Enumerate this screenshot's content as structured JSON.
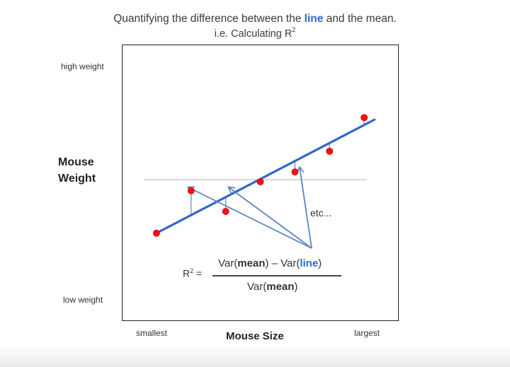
{
  "title": {
    "prefix": "Quantifying the difference between the ",
    "highlight": "line",
    "suffix": " and the mean."
  },
  "subtitle": {
    "text": "i.e. Calculating R",
    "sup": "2"
  },
  "y_axis": {
    "high_label": "high weight",
    "low_label": "low weight",
    "name_line1": "Mouse",
    "name_line2": "Weight"
  },
  "x_axis": {
    "low_label": "smallest",
    "high_label": "largest",
    "name": "Mouse Size"
  },
  "annotation": "etc...",
  "formula": {
    "lhs": "R",
    "lhs_sup": "2",
    "lhs_eq": " =",
    "num_var1": "Var(",
    "num_mean": "mean",
    "num_mid": ") – Var(",
    "num_line": "line",
    "num_close": ")",
    "den_var": "Var(",
    "den_mean": "mean",
    "den_close": ")"
  },
  "colors": {
    "line": "#3366cc",
    "point": "#ee1111",
    "mean": "#cccccc",
    "arrow": "#5b84c4"
  },
  "chart_data": {
    "type": "scatter",
    "x": [
      1,
      2,
      3,
      4,
      5,
      6,
      7
    ],
    "y": [
      1.45,
      3.6,
      2.55,
      4.05,
      4.55,
      5.6,
      7.3
    ],
    "fit_line": {
      "x": [
        1,
        7.3
      ],
      "y": [
        1.45,
        7.2
      ]
    },
    "mean_y": 4.15,
    "xlim": [
      0,
      8
    ],
    "ylim": [
      -3,
      11
    ],
    "xlabel": "Mouse Size",
    "ylabel": "Mouse Weight"
  }
}
